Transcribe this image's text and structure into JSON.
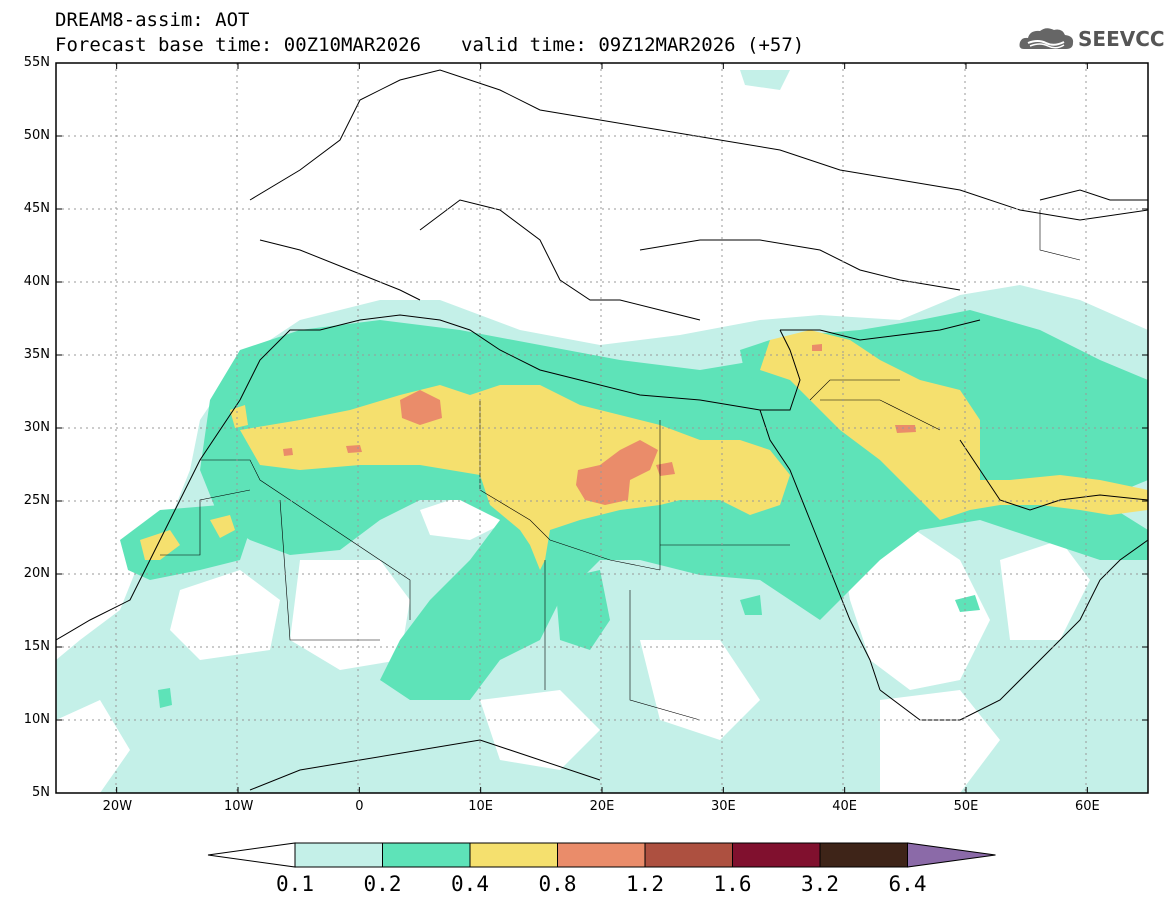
{
  "header": {
    "title": "DREAM8-assim: AOT",
    "base_time": "Forecast base time: 00Z10MAR2026",
    "valid_time": "valid time: 09Z12MAR2026 (+57)"
  },
  "logo": {
    "text": "SEEVCCC",
    "icon": "cloud-icon"
  },
  "map": {
    "lat_labels": [
      "55N",
      "50N",
      "45N",
      "40N",
      "35N",
      "30N",
      "25N",
      "20N",
      "15N",
      "10N",
      "5N"
    ],
    "lon_labels": [
      "20W",
      "10W",
      "0",
      "10E",
      "20E",
      "30E",
      "40E",
      "50E",
      "60E"
    ],
    "lat_range": [
      5,
      55
    ],
    "lon_range": [
      -25,
      65
    ]
  },
  "colorbar": {
    "levels": [
      "0.1",
      "0.2",
      "0.4",
      "0.8",
      "1.2",
      "1.6",
      "3.2",
      "6.4"
    ],
    "colors": [
      "#c4f0e8",
      "#5ee3b8",
      "#f5e06e",
      "#ea8c6a",
      "#ad5040",
      "#80102e",
      "#3e2418",
      "#8b6aa8"
    ]
  }
}
